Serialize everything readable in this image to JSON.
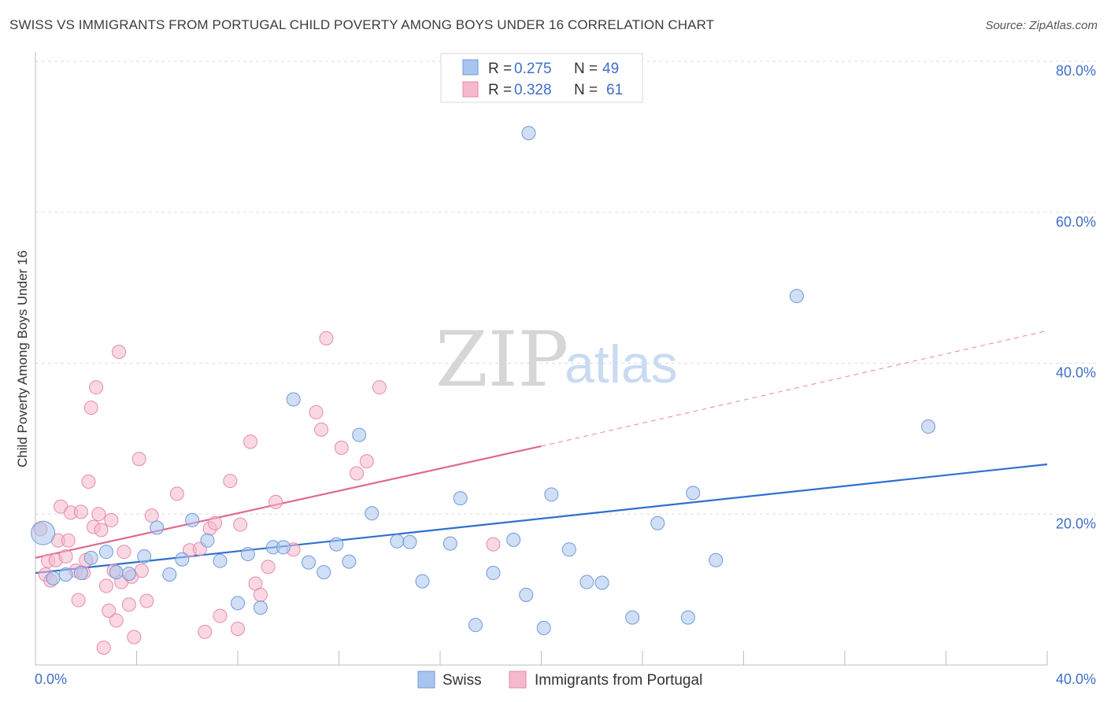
{
  "title": "SWISS VS IMMIGRANTS FROM PORTUGAL CHILD POVERTY AMONG BOYS UNDER 16 CORRELATION CHART",
  "source": "Source: ZipAtlas.com",
  "watermark": {
    "zip": "ZIP",
    "atlas": "atlas"
  },
  "legend_top": [
    {
      "r_label": "R = ",
      "r_value": "0.275",
      "n_label": "N = ",
      "n_value": "49",
      "color": "#a9c4ef"
    },
    {
      "r_label": "R = ",
      "r_value": "0.328",
      "n_label": "N = ",
      "n_value": "61",
      "color": "#f5b8cc"
    }
  ],
  "chart_data": {
    "type": "scatter",
    "title": "SWISS VS IMMIGRANTS FROM PORTUGAL CHILD POVERTY AMONG BOYS UNDER 16 CORRELATION CHART",
    "xlabel": "",
    "ylabel": "Child Poverty Among Boys Under 16",
    "xlim": [
      0,
      40
    ],
    "ylim": [
      0,
      80
    ],
    "x_tick_labels": [
      "0.0%",
      "40.0%"
    ],
    "y_ticks": [
      20,
      40,
      60,
      80
    ],
    "y_tick_labels": [
      "20.0%",
      "40.0%",
      "60.0%",
      "80.0%"
    ],
    "grid": true,
    "legend_position": "bottom-center",
    "series": [
      {
        "name": "Swiss",
        "color": "#a9c4ef",
        "edge": "#6f9ad8",
        "trend_color": "#2f6fd0",
        "trend": {
          "x0": 0,
          "y0": 12.2,
          "x1": 40,
          "y1": 26.6
        },
        "points": [
          [
            0.3,
            17.5
          ],
          [
            0.7,
            11.5
          ],
          [
            1.2,
            12.0
          ],
          [
            1.8,
            12.2
          ],
          [
            2.2,
            14.2
          ],
          [
            2.8,
            15.0
          ],
          [
            3.2,
            12.3
          ],
          [
            3.7,
            12.1
          ],
          [
            4.3,
            14.4
          ],
          [
            4.8,
            18.2
          ],
          [
            5.3,
            12.0
          ],
          [
            5.8,
            14.0
          ],
          [
            6.2,
            19.2
          ],
          [
            6.8,
            16.5
          ],
          [
            7.3,
            13.8
          ],
          [
            8.0,
            8.2
          ],
          [
            8.4,
            14.7
          ],
          [
            8.9,
            7.6
          ],
          [
            9.4,
            15.6
          ],
          [
            9.8,
            15.6
          ],
          [
            10.2,
            35.2
          ],
          [
            10.8,
            13.6
          ],
          [
            11.4,
            12.3
          ],
          [
            11.9,
            16.0
          ],
          [
            12.4,
            13.7
          ],
          [
            12.8,
            30.5
          ],
          [
            13.3,
            20.1
          ],
          [
            14.3,
            16.4
          ],
          [
            14.8,
            16.3
          ],
          [
            15.3,
            11.1
          ],
          [
            16.4,
            16.1
          ],
          [
            16.8,
            22.1
          ],
          [
            17.4,
            5.3
          ],
          [
            18.1,
            12.2
          ],
          [
            18.9,
            16.6
          ],
          [
            19.4,
            9.3
          ],
          [
            19.5,
            70.5
          ],
          [
            20.4,
            22.6
          ],
          [
            20.1,
            4.9
          ],
          [
            21.1,
            15.3
          ],
          [
            21.8,
            11.0
          ],
          [
            22.4,
            10.9
          ],
          [
            23.6,
            6.3
          ],
          [
            24.6,
            18.8
          ],
          [
            25.8,
            6.3
          ],
          [
            26.0,
            22.8
          ],
          [
            26.9,
            13.9
          ],
          [
            30.1,
            48.9
          ],
          [
            35.3,
            31.6
          ]
        ]
      },
      {
        "name": "Immigrants from Portugal",
        "color": "#f5b8cc",
        "edge": "#e88aa8",
        "trend_color": "#e06890",
        "trend": {
          "x0": 0,
          "y0": 14.2,
          "x1": 20.0,
          "y1": 29.0
        },
        "trend_dashed_to": {
          "x": 40,
          "y": 44.3
        },
        "points": [
          [
            0.2,
            18.0
          ],
          [
            0.4,
            12.0
          ],
          [
            0.5,
            13.8
          ],
          [
            0.6,
            11.2
          ],
          [
            0.8,
            13.9
          ],
          [
            0.9,
            16.5
          ],
          [
            1.0,
            21.0
          ],
          [
            1.2,
            14.4
          ],
          [
            1.3,
            16.5
          ],
          [
            1.4,
            20.2
          ],
          [
            1.6,
            12.5
          ],
          [
            1.7,
            8.6
          ],
          [
            1.8,
            20.3
          ],
          [
            1.9,
            12.2
          ],
          [
            2.0,
            13.9
          ],
          [
            2.1,
            24.3
          ],
          [
            2.2,
            34.1
          ],
          [
            2.3,
            18.3
          ],
          [
            2.4,
            36.8
          ],
          [
            2.5,
            20.0
          ],
          [
            2.6,
            17.9
          ],
          [
            2.8,
            10.5
          ],
          [
            2.9,
            7.2
          ],
          [
            3.0,
            19.2
          ],
          [
            3.1,
            12.5
          ],
          [
            3.2,
            5.9
          ],
          [
            3.3,
            41.5
          ],
          [
            3.4,
            11.0
          ],
          [
            3.5,
            15.0
          ],
          [
            3.7,
            8.0
          ],
          [
            3.8,
            11.7
          ],
          [
            3.9,
            3.7
          ],
          [
            4.1,
            27.3
          ],
          [
            4.2,
            12.5
          ],
          [
            4.4,
            8.5
          ],
          [
            4.6,
            19.8
          ],
          [
            5.6,
            22.7
          ],
          [
            6.1,
            15.2
          ],
          [
            6.5,
            15.4
          ],
          [
            6.7,
            4.4
          ],
          [
            6.9,
            18.1
          ],
          [
            7.1,
            18.8
          ],
          [
            7.3,
            6.5
          ],
          [
            7.7,
            24.4
          ],
          [
            8.0,
            4.8
          ],
          [
            8.1,
            18.6
          ],
          [
            8.5,
            29.6
          ],
          [
            8.7,
            10.8
          ],
          [
            8.9,
            9.3
          ],
          [
            9.2,
            13.0
          ],
          [
            9.5,
            21.6
          ],
          [
            10.2,
            15.3
          ],
          [
            11.1,
            33.5
          ],
          [
            11.3,
            31.2
          ],
          [
            12.1,
            28.8
          ],
          [
            12.7,
            25.4
          ],
          [
            13.1,
            27.0
          ],
          [
            13.6,
            36.8
          ],
          [
            11.5,
            43.3
          ],
          [
            18.1,
            16.0
          ],
          [
            2.7,
            2.3
          ]
        ]
      }
    ]
  },
  "legend_bottom": [
    {
      "label": "Swiss"
    },
    {
      "label": "Immigrants from Portugal"
    }
  ]
}
